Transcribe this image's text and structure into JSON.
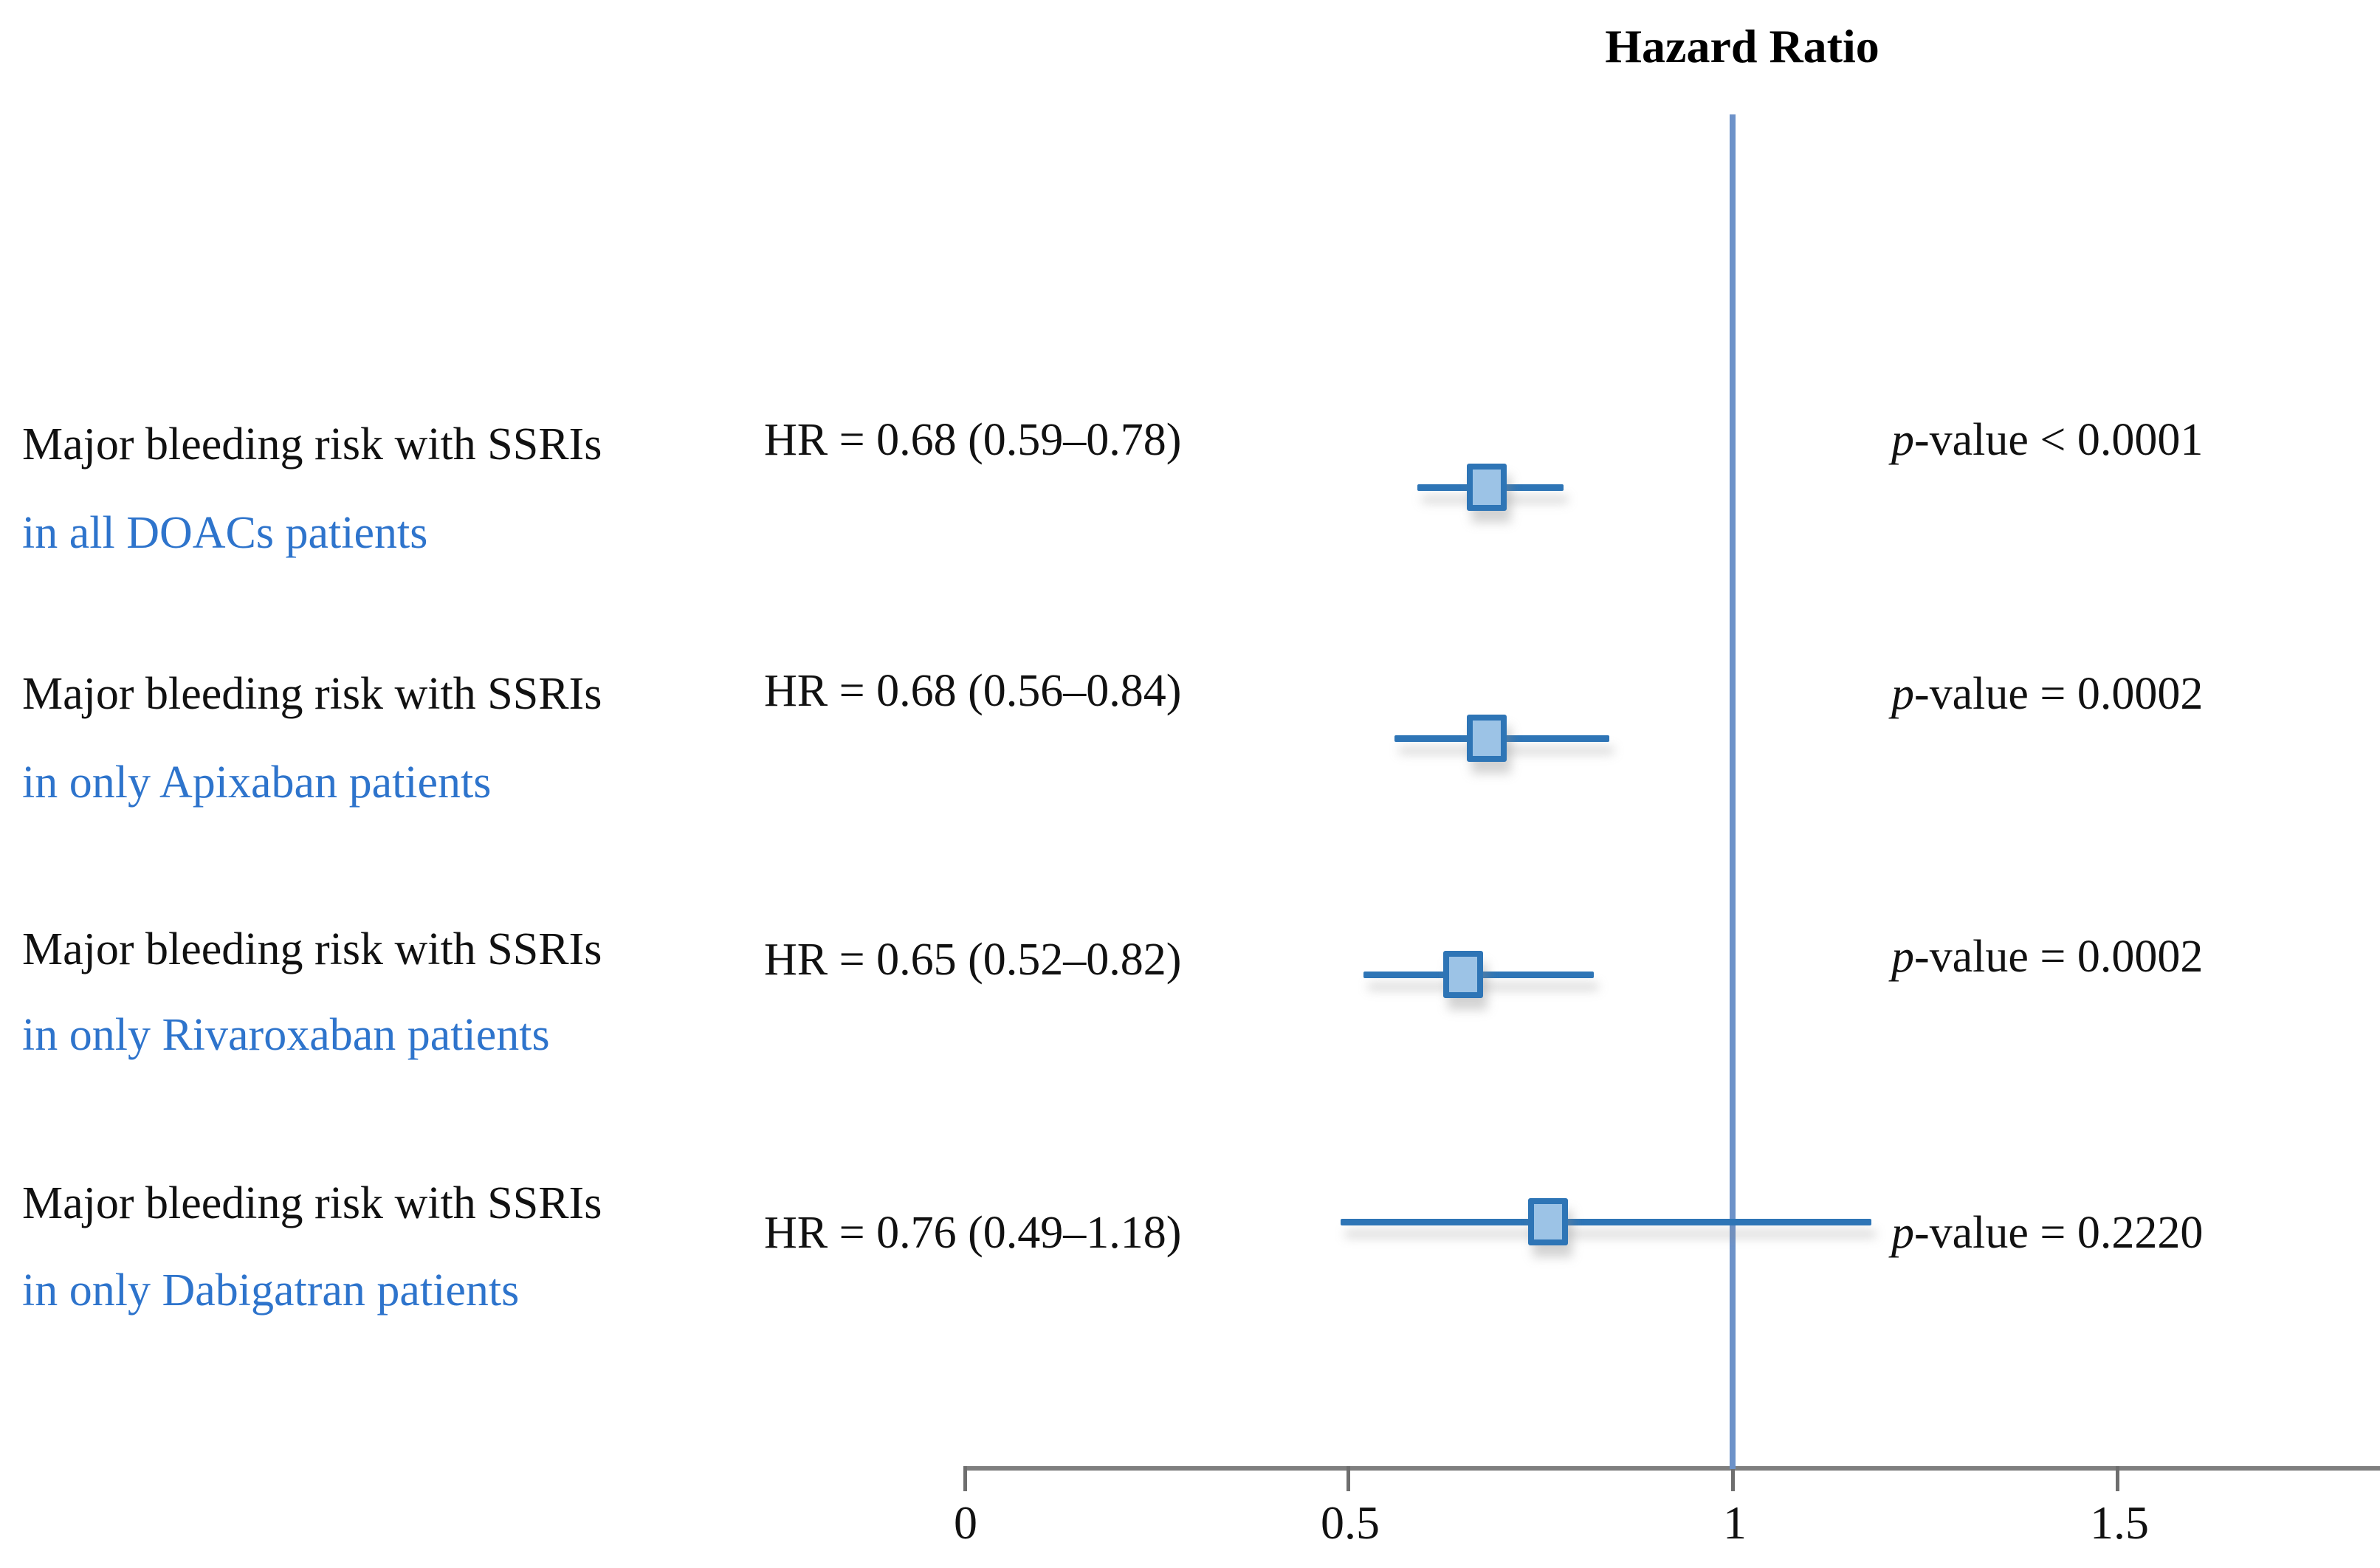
{
  "figure_title": "Hazard Ratio",
  "colors": {
    "label_blue": "#2E74CC",
    "marker_fill": "#9CC3E6",
    "marker_border": "#2E75B6",
    "ci_line": "#2E75B6",
    "reference_line": "#6D92C9",
    "axis_gray": "#7F7F7F",
    "text_black": "#111111"
  },
  "chart_data": {
    "type": "forest",
    "title": "Hazard Ratio",
    "x_axis": {
      "tick_labels": [
        "0",
        "0.5",
        "1",
        "1.5"
      ],
      "tick_values": [
        0,
        0.5,
        1,
        1.5
      ],
      "range": [
        0,
        1.84
      ],
      "reference_line_value": 1.0,
      "grid": false
    },
    "rows": [
      {
        "group_line1": "Major bleeding risk with SSRIs",
        "group_line2": "in all DOACs patients",
        "hr_label": "HR = 0.68 (0.59–0.78)",
        "hr": 0.68,
        "ci_low": 0.59,
        "ci_high": 0.78,
        "p_italic": "p",
        "p_rest": "-value < 0.0001"
      },
      {
        "group_line1": "Major bleeding risk with SSRIs",
        "group_line2": "in only Apixaban patients",
        "hr_label": "HR = 0.68 (0.56–0.84)",
        "hr": 0.68,
        "ci_low": 0.56,
        "ci_high": 0.84,
        "p_italic": "p",
        "p_rest": "-value = 0.0002"
      },
      {
        "group_line1": "Major bleeding risk with SSRIs",
        "group_line2": "in only Rivaroxaban patients",
        "hr_label": "HR = 0.65 (0.52–0.82)",
        "hr": 0.65,
        "ci_low": 0.52,
        "ci_high": 0.82,
        "p_italic": "p",
        "p_rest": "-value = 0.0002"
      },
      {
        "group_line1": "Major bleeding risk with SSRIs",
        "group_line2": "in only Dabigatran patients",
        "hr_label": "HR = 0.76 (0.49–1.18)",
        "hr": 0.76,
        "ci_low": 0.49,
        "ci_high": 1.18,
        "p_italic": "p",
        "p_rest": "-value = 0.2220"
      }
    ]
  }
}
